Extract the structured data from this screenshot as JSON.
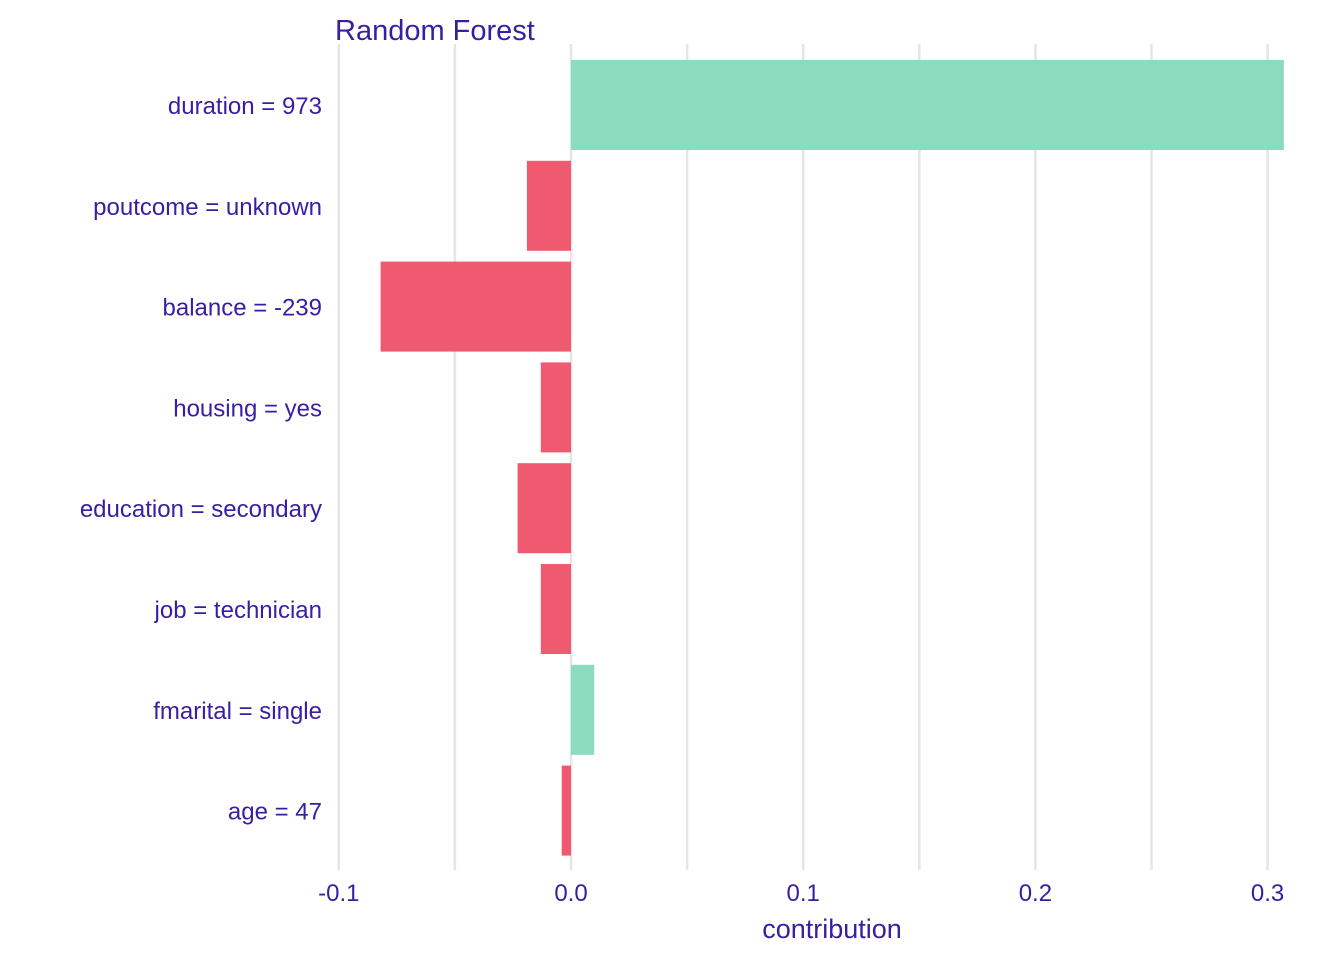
{
  "chart_data": {
    "type": "bar",
    "orientation": "horizontal",
    "title": "Random Forest",
    "xlabel": "contribution",
    "ylabel": "",
    "categories": [
      "duration = 973",
      "poutcome = unknown",
      "balance = -239",
      "housing = yes",
      "education = secondary",
      "job = technician",
      "fmarital = single",
      "age = 47"
    ],
    "values": [
      0.307,
      -0.019,
      -0.082,
      -0.013,
      -0.023,
      -0.013,
      0.01,
      -0.004
    ],
    "xlim": [
      -0.1,
      0.3
    ],
    "x_ticks": [
      -0.1,
      0.0,
      0.1,
      0.2,
      0.3
    ],
    "x_tick_labels": [
      "-0.1",
      "0.0",
      "0.1",
      "0.2",
      "0.3"
    ],
    "grid": true,
    "legend": "none",
    "colors": {
      "positive": "#8bdcbe",
      "negative": "#f05a71",
      "text": "#371ea3",
      "grid": "#e5e5e5"
    }
  }
}
